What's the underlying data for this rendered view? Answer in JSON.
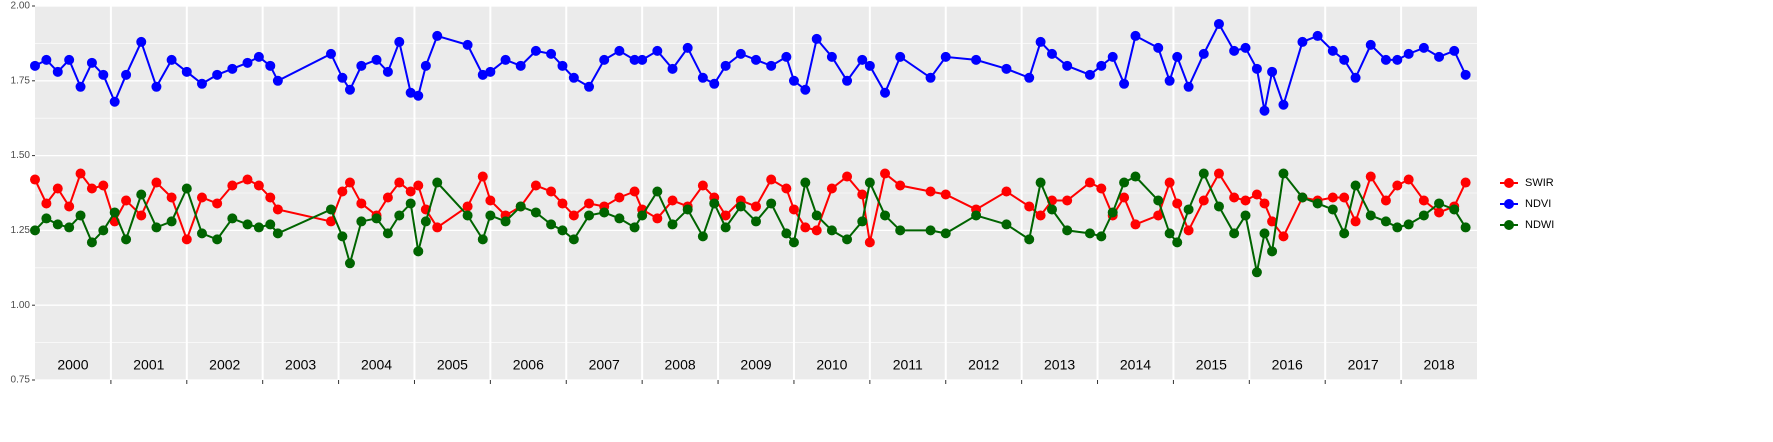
{
  "chart_data": {
    "type": "line",
    "x": [
      2000.0,
      2000.15,
      2000.3,
      2000.45,
      2000.6,
      2000.75,
      2000.9,
      2001.05,
      2001.2,
      2001.4,
      2001.6,
      2001.8,
      2002.0,
      2002.2,
      2002.4,
      2002.6,
      2002.8,
      2002.95,
      2003.1,
      2003.2,
      2003.9,
      2004.05,
      2004.15,
      2004.3,
      2004.5,
      2004.65,
      2004.8,
      2004.95,
      2005.05,
      2005.15,
      2005.3,
      2005.7,
      2005.9,
      2006.0,
      2006.2,
      2006.4,
      2006.6,
      2006.8,
      2006.95,
      2007.1,
      2007.3,
      2007.5,
      2007.7,
      2007.9,
      2008.0,
      2008.2,
      2008.4,
      2008.6,
      2008.8,
      2008.95,
      2009.1,
      2009.3,
      2009.5,
      2009.7,
      2009.9,
      2010.0,
      2010.15,
      2010.3,
      2010.5,
      2010.7,
      2010.9,
      2011.0,
      2011.2,
      2011.4,
      2011.8,
      2012.0,
      2012.4,
      2012.8,
      2013.1,
      2013.25,
      2013.4,
      2013.6,
      2013.9,
      2014.05,
      2014.2,
      2014.35,
      2014.5,
      2014.8,
      2014.95,
      2015.05,
      2015.2,
      2015.4,
      2015.6,
      2015.8,
      2015.95,
      2016.1,
      2016.2,
      2016.3,
      2016.45,
      2016.7,
      2016.9,
      2017.1,
      2017.25,
      2017.4,
      2017.6,
      2017.8,
      2017.95,
      2018.1,
      2018.3,
      2018.5,
      2018.7,
      2018.85
    ],
    "series": [
      {
        "name": "SWIR",
        "color": "#ff0000",
        "values": [
          1.42,
          1.34,
          1.39,
          1.33,
          1.44,
          1.39,
          1.4,
          1.28,
          1.35,
          1.3,
          1.41,
          1.36,
          1.22,
          1.36,
          1.34,
          1.4,
          1.42,
          1.4,
          1.36,
          1.32,
          1.28,
          1.38,
          1.41,
          1.34,
          1.3,
          1.36,
          1.41,
          1.38,
          1.4,
          1.32,
          1.26,
          1.33,
          1.43,
          1.35,
          1.3,
          1.33,
          1.4,
          1.38,
          1.34,
          1.3,
          1.34,
          1.33,
          1.36,
          1.38,
          1.32,
          1.29,
          1.35,
          1.33,
          1.4,
          1.36,
          1.3,
          1.35,
          1.33,
          1.42,
          1.39,
          1.32,
          1.26,
          1.25,
          1.39,
          1.43,
          1.37,
          1.21,
          1.44,
          1.4,
          1.38,
          1.37,
          1.32,
          1.38,
          1.33,
          1.3,
          1.35,
          1.35,
          1.41,
          1.39,
          1.3,
          1.36,
          1.27,
          1.3,
          1.41,
          1.34,
          1.25,
          1.35,
          1.44,
          1.36,
          1.35,
          1.37,
          1.34,
          1.28,
          1.23,
          1.36,
          1.35,
          1.36,
          1.36,
          1.28,
          1.43,
          1.35,
          1.4,
          1.42,
          1.35,
          1.31,
          1.33,
          1.41
        ]
      },
      {
        "name": "NDVI",
        "color": "#0000ff",
        "values": [
          1.8,
          1.82,
          1.78,
          1.82,
          1.73,
          1.81,
          1.77,
          1.68,
          1.77,
          1.88,
          1.73,
          1.82,
          1.78,
          1.74,
          1.77,
          1.79,
          1.81,
          1.83,
          1.8,
          1.75,
          1.84,
          1.76,
          1.72,
          1.8,
          1.82,
          1.78,
          1.88,
          1.71,
          1.7,
          1.8,
          1.9,
          1.87,
          1.77,
          1.78,
          1.82,
          1.8,
          1.85,
          1.84,
          1.8,
          1.76,
          1.73,
          1.82,
          1.85,
          1.82,
          1.82,
          1.85,
          1.79,
          1.86,
          1.76,
          1.74,
          1.8,
          1.84,
          1.82,
          1.8,
          1.83,
          1.75,
          1.72,
          1.89,
          1.83,
          1.75,
          1.82,
          1.8,
          1.71,
          1.83,
          1.76,
          1.83,
          1.82,
          1.79,
          1.76,
          1.88,
          1.84,
          1.8,
          1.77,
          1.8,
          1.83,
          1.74,
          1.9,
          1.86,
          1.75,
          1.83,
          1.73,
          1.84,
          1.94,
          1.85,
          1.86,
          1.79,
          1.65,
          1.78,
          1.67,
          1.88,
          1.9,
          1.85,
          1.82,
          1.76,
          1.87,
          1.82,
          1.82,
          1.84,
          1.86,
          1.83,
          1.85,
          1.77
        ]
      },
      {
        "name": "NDWI",
        "color": "#006400",
        "values": [
          1.25,
          1.29,
          1.27,
          1.26,
          1.3,
          1.21,
          1.25,
          1.31,
          1.22,
          1.37,
          1.26,
          1.28,
          1.39,
          1.24,
          1.22,
          1.29,
          1.27,
          1.26,
          1.27,
          1.24,
          1.32,
          1.23,
          1.14,
          1.28,
          1.29,
          1.24,
          1.3,
          1.34,
          1.18,
          1.28,
          1.41,
          1.3,
          1.22,
          1.3,
          1.28,
          1.33,
          1.31,
          1.27,
          1.25,
          1.22,
          1.3,
          1.31,
          1.29,
          1.26,
          1.3,
          1.38,
          1.27,
          1.32,
          1.23,
          1.34,
          1.26,
          1.33,
          1.28,
          1.34,
          1.24,
          1.21,
          1.41,
          1.3,
          1.25,
          1.22,
          1.28,
          1.41,
          1.3,
          1.25,
          1.25,
          1.24,
          1.3,
          1.27,
          1.22,
          1.41,
          1.32,
          1.25,
          1.24,
          1.23,
          1.31,
          1.41,
          1.43,
          1.35,
          1.24,
          1.21,
          1.32,
          1.44,
          1.33,
          1.24,
          1.3,
          1.11,
          1.24,
          1.18,
          1.44,
          1.36,
          1.34,
          1.32,
          1.24,
          1.4,
          1.3,
          1.28,
          1.26,
          1.27,
          1.3,
          1.34,
          1.32,
          1.26
        ]
      }
    ],
    "xlim": [
      2000,
      2019
    ],
    "xticks": [
      {
        "value": 2000.5,
        "label": "2000"
      },
      {
        "value": 2001.5,
        "label": "2001"
      },
      {
        "value": 2002.5,
        "label": "2002"
      },
      {
        "value": 2003.5,
        "label": "2003"
      },
      {
        "value": 2004.5,
        "label": "2004"
      },
      {
        "value": 2005.5,
        "label": "2005"
      },
      {
        "value": 2006.5,
        "label": "2006"
      },
      {
        "value": 2007.5,
        "label": "2007"
      },
      {
        "value": 2008.5,
        "label": "2008"
      },
      {
        "value": 2009.5,
        "label": "2009"
      },
      {
        "value": 2010.5,
        "label": "2010"
      },
      {
        "value": 2011.5,
        "label": "2011"
      },
      {
        "value": 2012.5,
        "label": "2012"
      },
      {
        "value": 2013.5,
        "label": "2013"
      },
      {
        "value": 2014.5,
        "label": "2014"
      },
      {
        "value": 2015.5,
        "label": "2015"
      },
      {
        "value": 2016.5,
        "label": "2016"
      },
      {
        "value": 2017.5,
        "label": "2017"
      },
      {
        "value": 2018.5,
        "label": "2018"
      }
    ],
    "ylim": [
      0.75,
      2.0
    ],
    "yticks": [
      {
        "value": 0.75,
        "label": "0.75"
      },
      {
        "value": 1.0,
        "label": "1.00"
      },
      {
        "value": 1.25,
        "label": "1.25"
      },
      {
        "value": 1.5,
        "label": "1.50"
      },
      {
        "value": 1.75,
        "label": "1.75"
      },
      {
        "value": 2.0,
        "label": "2.00"
      }
    ],
    "grid": true,
    "legend": "right"
  }
}
